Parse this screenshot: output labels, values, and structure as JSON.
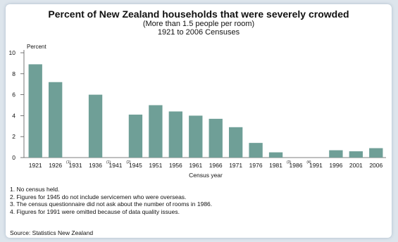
{
  "chart_data": {
    "type": "bar",
    "title": "Percent of New Zealand households that were severely crowded",
    "subtitle": "(More than 1.5 people per room)",
    "subsubtitle": "1921 to 2006 Censuses",
    "ylabel": "Percent",
    "xlabel": "Census year",
    "ylim": [
      0,
      10
    ],
    "yticks": [
      "0",
      "2",
      "4",
      "6",
      "8",
      "10"
    ],
    "categories": [
      "1921",
      "1926",
      "1931",
      "1936",
      "1941",
      "1945",
      "1951",
      "1956",
      "1961",
      "1966",
      "1971",
      "1976",
      "1981",
      "1986",
      "1991",
      "1996",
      "2001",
      "2006"
    ],
    "superscripts": [
      "",
      "",
      "(1)",
      "",
      "(1)",
      "(2)",
      "",
      "",
      "",
      "",
      "",
      "",
      "",
      "(3)",
      "(4)",
      "",
      "",
      ""
    ],
    "values": [
      8.9,
      7.2,
      null,
      6.0,
      null,
      4.1,
      5.0,
      4.4,
      4.0,
      3.7,
      2.9,
      1.4,
      0.5,
      null,
      null,
      0.7,
      0.6,
      0.9
    ],
    "bar_color": "#6f9f97",
    "grid": false
  },
  "notes": [
    "1. No census held.",
    "2. Figures for 1945 do not include servicemen who were overseas.",
    "3. The census questionnaire did not ask about the number of rooms in 1986.",
    "4.  Figures for 1991 were omitted because of data quality issues."
  ],
  "source": "Source: Statistics New Zealand"
}
